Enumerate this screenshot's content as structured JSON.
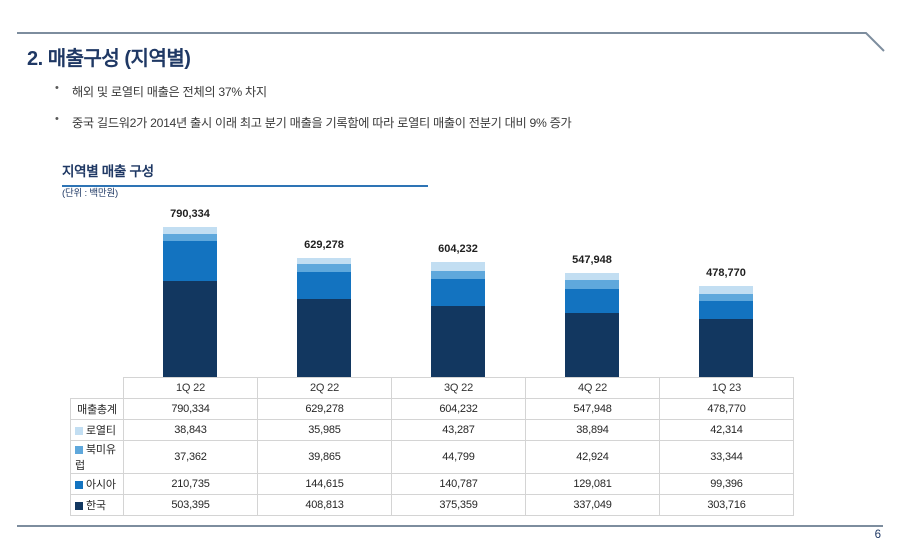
{
  "slide": {
    "title": "2. 매출구성 (지역별)",
    "bullets": [
      "해외 및 로열티 매출은 전체의 37% 차지",
      "중국 길드워2가 2014년 출시 이래 최고 분기 매출을 기록함에 따라 로열티 매출이 전분기 대비 9% 증가"
    ],
    "page_number": "6"
  },
  "section": {
    "title": "지역별 매출 구성",
    "unit_label": "(단위 : 백만원)"
  },
  "colors": {
    "accent_navy": "#1f3864",
    "underline_blue": "#2e74b5",
    "rule_gray": "#7d8d9e",
    "table_border": "#d4d4d4"
  },
  "chart_data": {
    "type": "bar",
    "stacked": true,
    "title": "지역별 매출 구성",
    "ylabel": "백만원",
    "categories": [
      "1Q 22",
      "2Q 22",
      "3Q 22",
      "4Q 22",
      "1Q 23"
    ],
    "totals": [
      790334,
      629278,
      604232,
      547948,
      478770
    ],
    "total_row_label": "매출총계",
    "series": [
      {
        "key": "royalty",
        "name": "로열티",
        "color": "#c2def2",
        "values": [
          38843,
          35985,
          43287,
          38894,
          42314
        ]
      },
      {
        "key": "na-europe",
        "name": "북미유럽",
        "color": "#5fa8dc",
        "values": [
          37362,
          39865,
          44799,
          42924,
          33344
        ]
      },
      {
        "key": "asia",
        "name": "아시아",
        "color": "#1373c0",
        "values": [
          210735,
          144615,
          140787,
          129081,
          99396
        ]
      },
      {
        "key": "korea",
        "name": "한국",
        "color": "#123760",
        "values": [
          503395,
          408813,
          375359,
          337049,
          303716
        ]
      }
    ],
    "stack_order_top_to_bottom": [
      "로열티",
      "북미유럽",
      "아시아",
      "한국"
    ],
    "legend_position": "table-left-column",
    "grid": false
  }
}
